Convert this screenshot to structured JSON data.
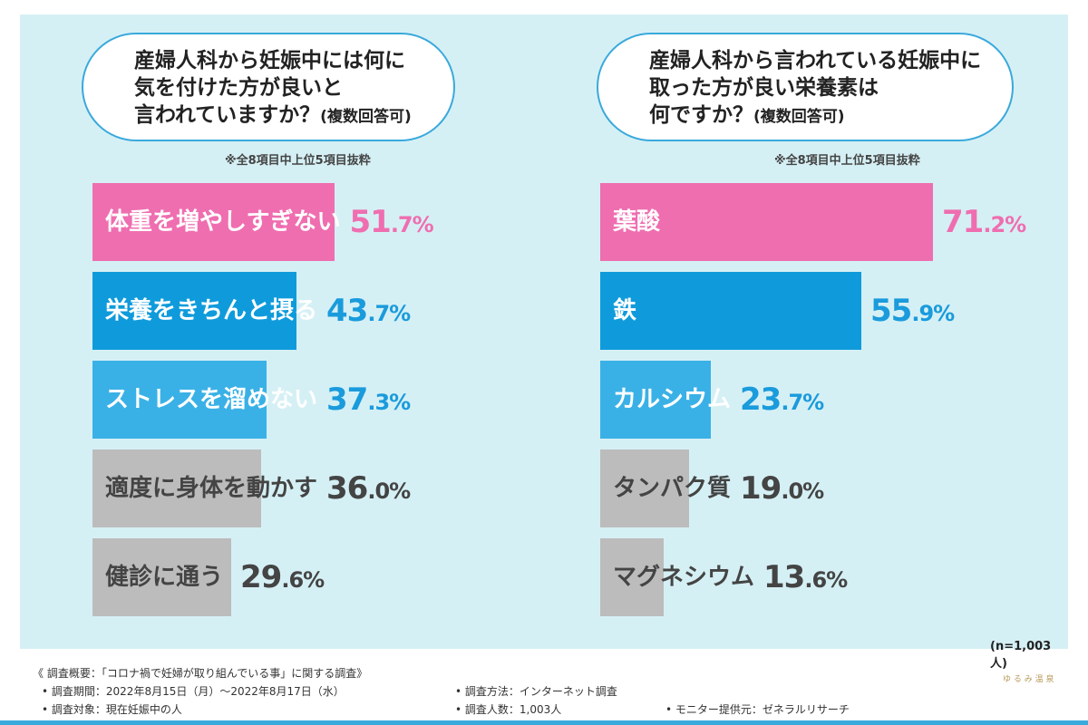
{
  "colors": {
    "pink": "#ef6eb0",
    "blue": "#0f9bdb",
    "lightblue": "#3ab1e6",
    "gray": "#bcbcbc",
    "pink_text": "#ef6eb0",
    "blue_text": "#1a9bdc",
    "gray_text": "#444444",
    "label_white": "#ffffff",
    "label_dark": "#444444"
  },
  "chart_data": [
    {
      "type": "bar",
      "question_lines": [
        "産婦人科から妊娠中には何に",
        "気を付けた方が良いと",
        "言われていますか？"
      ],
      "question_suffix": "(複数回答可)",
      "note": "※全8項目中上位5項目抜粋",
      "categories": [
        "体重を増やしすぎない",
        "栄養をきちんと摂る",
        "ストレスを溜めない",
        "適度に身体を動かす",
        "健診に通う"
      ],
      "values": [
        51.7,
        43.7,
        37.3,
        36.0,
        29.6
      ],
      "value_labels": [
        [
          "51",
          ".7%"
        ],
        [
          "43",
          ".7%"
        ],
        [
          "37",
          ".3%"
        ],
        [
          "36",
          ".0%"
        ],
        [
          "29",
          ".6%"
        ]
      ],
      "bar_colors": [
        "pink",
        "blue",
        "lightblue",
        "gray",
        "gray"
      ],
      "unit": "%"
    },
    {
      "type": "bar",
      "question_lines": [
        "産婦人科から言われている妊娠中に",
        "取った方が良い栄養素は",
        "何ですか？"
      ],
      "question_suffix": "(複数回答可)",
      "note": "※全8項目中上位5項目抜粋",
      "categories": [
        "葉酸",
        "鉄",
        "カルシウム",
        "タンパク質",
        "マグネシウム"
      ],
      "values": [
        71.2,
        55.9,
        23.7,
        19.0,
        13.6
      ],
      "value_labels": [
        [
          "71",
          ".2%"
        ],
        [
          "55",
          ".9%"
        ],
        [
          "23",
          ".7%"
        ],
        [
          "19",
          ".0%"
        ],
        [
          "13",
          ".6%"
        ]
      ],
      "bar_colors": [
        "pink",
        "blue",
        "lightblue",
        "gray",
        "gray"
      ],
      "unit": "%"
    }
  ],
  "sample_size": "(n=1,003人)",
  "footer": {
    "summary": "《 調査概要：「コロナ禍で妊婦が取り組んでいる事」に関する調査》",
    "period": "調査期間：2022年8月15日（月）～2022年8月17日（水）",
    "target": "調査対象：現在妊娠中の人",
    "method": "調査方法：インターネット調査",
    "count": "調査人数：1,003人",
    "provider": "モニター提供元：ゼネラルリサーチ"
  },
  "logo_text": "ゆ る み 温 泉"
}
